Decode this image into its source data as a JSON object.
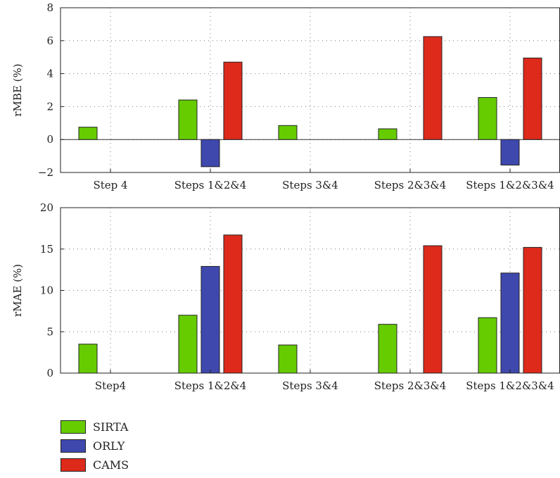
{
  "chart_data": [
    {
      "type": "bar",
      "ylabel": "rMBE (%)",
      "ylim": [
        -2,
        8
      ],
      "yticks": [
        -2,
        0,
        2,
        4,
        6,
        8
      ],
      "ytick_labels": [
        "−2",
        "0",
        "2",
        "4",
        "6",
        "8"
      ],
      "categories": [
        "Step 4",
        "Steps 1&2&4",
        "Steps 3&4",
        "Steps 2&3&4",
        "Steps 1&2&3&4"
      ],
      "grid": true,
      "series": [
        {
          "name": "SIRTA",
          "color": "#66cc00",
          "values": [
            0.75,
            2.4,
            0.85,
            0.65,
            2.55
          ]
        },
        {
          "name": "ORLY",
          "color": "#3f48ad",
          "values": [
            null,
            -1.65,
            null,
            null,
            -1.55
          ]
        },
        {
          "name": "CAMS",
          "color": "#dd2a1b",
          "values": [
            null,
            4.7,
            null,
            6.25,
            4.95
          ]
        }
      ]
    },
    {
      "type": "bar",
      "ylabel": "rMAE (%)",
      "ylim": [
        0,
        20
      ],
      "yticks": [
        0,
        5,
        10,
        15,
        20
      ],
      "ytick_labels": [
        "0",
        "5",
        "10",
        "15",
        "20"
      ],
      "categories": [
        "Step4",
        "Steps 1&2&4",
        "Steps 3&4",
        "Steps 2&3&4",
        "Steps 1&2&3&4"
      ],
      "grid": true,
      "series": [
        {
          "name": "SIRTA",
          "color": "#66cc00",
          "values": [
            3.5,
            7.0,
            3.4,
            5.9,
            6.7
          ]
        },
        {
          "name": "ORLY",
          "color": "#3f48ad",
          "values": [
            null,
            12.9,
            null,
            null,
            12.1
          ]
        },
        {
          "name": "CAMS",
          "color": "#dd2a1b",
          "values": [
            null,
            16.7,
            null,
            15.4,
            15.2
          ]
        }
      ]
    }
  ],
  "legend": {
    "placement": "bottom-left",
    "items": [
      {
        "label": "SIRTA",
        "color": "#66cc00"
      },
      {
        "label": "ORLY",
        "color": "#3f48ad"
      },
      {
        "label": "CAMS",
        "color": "#dd2a1b"
      }
    ]
  }
}
